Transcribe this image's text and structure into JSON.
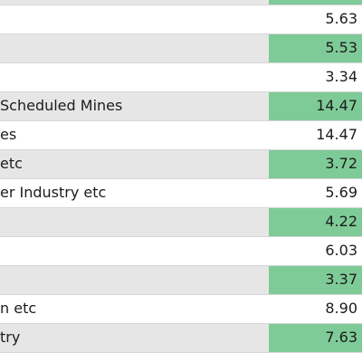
{
  "rows": [
    {
      "label": "",
      "value": "5.63",
      "shaded": false,
      "green": false
    },
    {
      "label": "",
      "value": "5.53",
      "shaded": true,
      "green": true
    },
    {
      "label": "",
      "value": "3.34",
      "shaded": false,
      "green": false
    },
    {
      "label": "Scheduled Mines",
      "value": "14.47",
      "shaded": true,
      "green": true
    },
    {
      "label": "es",
      "value": "14.47",
      "shaded": false,
      "green": false
    },
    {
      "label": "etc",
      "value": "3.72",
      "shaded": true,
      "green": true
    },
    {
      "label": "er Industry etc",
      "value": "5.69",
      "shaded": false,
      "green": false
    },
    {
      "label": "",
      "value": "4.22",
      "shaded": true,
      "green": true
    },
    {
      "label": "",
      "value": "6.03",
      "shaded": false,
      "green": false
    },
    {
      "label": "",
      "value": "3.37",
      "shaded": true,
      "green": true
    },
    {
      "label": "n etc",
      "value": "8.90",
      "shaded": false,
      "green": false
    },
    {
      "label": "try",
      "value": "7.63",
      "shaded": true,
      "green": true
    }
  ],
  "colors": {
    "shade": "#e6e6e7",
    "green": "#7ecb98",
    "text": "#1c1c1c"
  }
}
